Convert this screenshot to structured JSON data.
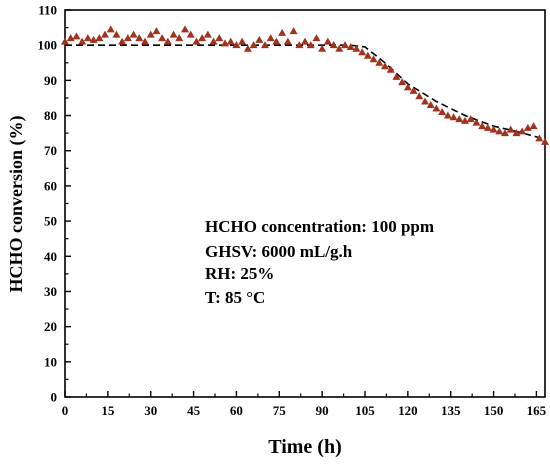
{
  "chart_data": {
    "type": "scatter",
    "xlabel": "Time (h)",
    "ylabel": "HCHO conversion (%)",
    "xlim": [
      0,
      168
    ],
    "ylim": [
      0,
      110
    ],
    "x_ticks": [
      0,
      15,
      30,
      45,
      60,
      75,
      90,
      105,
      120,
      135,
      150,
      165
    ],
    "y_ticks": [
      0,
      10,
      20,
      30,
      40,
      50,
      60,
      70,
      80,
      90,
      100,
      110
    ],
    "grid": false,
    "marker_color": "#a0321e",
    "trend_color": "#000000",
    "annotations": [
      "HCHO concentration: 100 ppm",
      "GHSV:  6000 mL/g.h",
      "RH:  25%",
      "T: 85 °C"
    ],
    "trend": {
      "x": [
        0,
        100,
        105,
        112,
        120,
        130,
        140,
        150,
        158,
        167
      ],
      "y": [
        100,
        100,
        99.5,
        95,
        89,
        84,
        80,
        77,
        75.5,
        73.5
      ]
    },
    "series": [
      {
        "x": [
          0,
          2,
          4,
          6,
          8,
          10,
          12,
          14,
          16,
          18,
          20,
          22,
          24,
          26,
          28,
          30,
          32,
          34,
          36,
          38,
          40,
          42,
          44,
          46,
          48,
          50,
          52,
          54,
          56,
          58,
          60,
          62,
          64,
          66,
          68,
          70,
          72,
          74,
          76,
          78,
          80,
          82,
          84,
          86,
          88,
          90,
          92,
          94,
          96,
          98,
          100,
          102,
          104,
          106,
          108,
          110,
          112,
          114,
          116,
          118,
          120,
          122,
          124,
          126,
          128,
          130,
          132,
          134,
          136,
          138,
          140,
          142,
          144,
          146,
          148,
          150,
          152,
          154,
          156,
          158,
          160,
          162,
          164,
          166,
          168
        ],
        "y": [
          101,
          102,
          102.5,
          101,
          102,
          101.5,
          102,
          103,
          104.5,
          103,
          101,
          102,
          103,
          102,
          101,
          103,
          104,
          102,
          101,
          103,
          102,
          104.5,
          103,
          101,
          102,
          103,
          101,
          102,
          100.5,
          101,
          100,
          101,
          99,
          100,
          101.5,
          100,
          102,
          101,
          103.5,
          101,
          104,
          100,
          101,
          100,
          102,
          99,
          101,
          100,
          99,
          100,
          99.5,
          99,
          98,
          97,
          96,
          95,
          94,
          93,
          91,
          89.5,
          88,
          87,
          85.5,
          84,
          83,
          82,
          81,
          80,
          79.5,
          79,
          78.5,
          79,
          78,
          77,
          76.5,
          76,
          75.5,
          75,
          76,
          75,
          75.5,
          76.5,
          77,
          73.5,
          72.5
        ]
      }
    ]
  }
}
